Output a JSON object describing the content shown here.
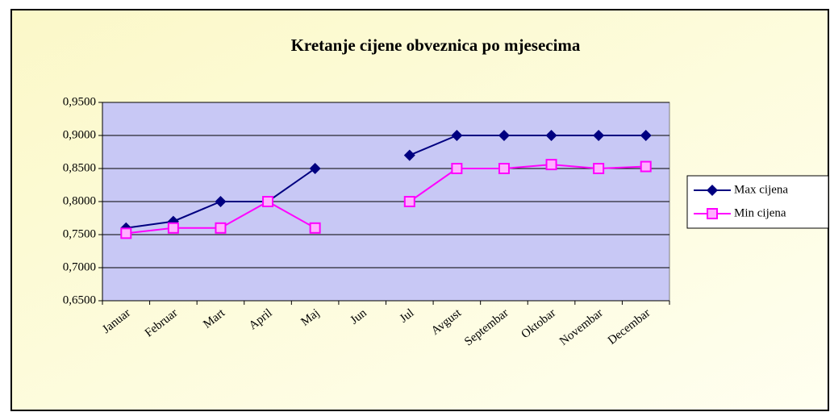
{
  "chart_data": {
    "type": "line",
    "title": "Kretanje cijene obveznica po mjesecima",
    "categories": [
      "Januar",
      "Februar",
      "Mart",
      "April",
      "Maj",
      "Jun",
      "Jul",
      "Avgust",
      "Septembar",
      "Oktobar",
      "Novembar",
      "Decembar"
    ],
    "series": [
      {
        "name": "Max cijena",
        "color": "#000080",
        "values": [
          0.76,
          0.77,
          0.8,
          0.8,
          0.85,
          null,
          0.87,
          0.9,
          0.9,
          0.9,
          0.9,
          0.9
        ]
      },
      {
        "name": "Min cijena",
        "color": "#ff00ff",
        "values": [
          0.752,
          0.76,
          0.76,
          0.8,
          0.76,
          null,
          0.8,
          0.85,
          0.85,
          0.856,
          0.85,
          0.853
        ]
      }
    ],
    "ylim": [
      0.65,
      0.95
    ],
    "yticks": [
      {
        "value": 0.65,
        "label": "0,6500"
      },
      {
        "value": 0.7,
        "label": "0,7000"
      },
      {
        "value": 0.75,
        "label": "0,7500"
      },
      {
        "value": 0.8,
        "label": "0,8000"
      },
      {
        "value": 0.85,
        "label": "0,8500"
      },
      {
        "value": 0.9,
        "label": "0,9000"
      },
      {
        "value": 0.95,
        "label": "0,9500"
      }
    ],
    "grid": true,
    "legend": "right"
  }
}
